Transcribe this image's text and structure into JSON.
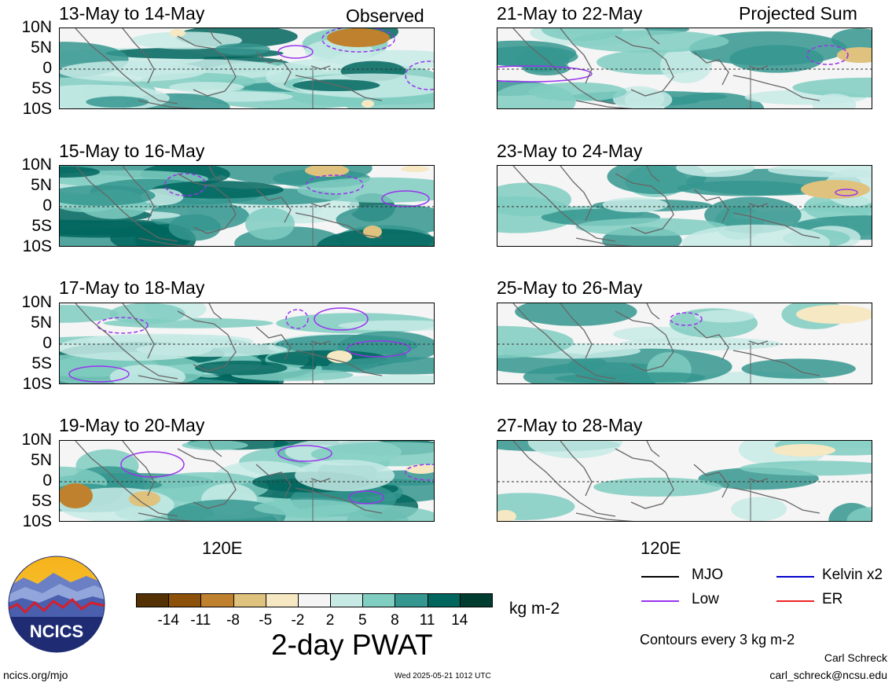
{
  "panels_left": [
    {
      "title": "13-May to 14-May",
      "tag": "Observed"
    },
    {
      "title": "15-May to 16-May",
      "tag": ""
    },
    {
      "title": "17-May to 18-May",
      "tag": ""
    },
    {
      "title": "19-May to 20-May",
      "tag": ""
    }
  ],
  "panels_right": [
    {
      "title": "21-May to 22-May",
      "tag": "Projected Sum"
    },
    {
      "title": "23-May to 24-May",
      "tag": ""
    },
    {
      "title": "25-May to 26-May",
      "tag": ""
    },
    {
      "title": "27-May to 28-May",
      "tag": ""
    }
  ],
  "lat_labels": [
    "10N",
    "5N",
    "0",
    "5S",
    "10S"
  ],
  "lon_label": "120E",
  "colorbar": {
    "ticks": [
      "-14",
      "-11",
      "-8",
      "-5",
      "-2",
      "2",
      "5",
      "8",
      "11",
      "14"
    ],
    "colors": [
      "#543005",
      "#8c510a",
      "#bf812d",
      "#dfc27d",
      "#f6e8c3",
      "#f5f5f5",
      "#c7eae5",
      "#80cdc1",
      "#35978f",
      "#01665e",
      "#003c30"
    ],
    "units": "kg m-2",
    "title": "2-day PWAT"
  },
  "legend": [
    {
      "label": "MJO",
      "color": "#000000"
    },
    {
      "label": "Kelvin x2",
      "color": "#0000cc"
    },
    {
      "label": "Low",
      "color": "#9933ee"
    },
    {
      "label": "ER",
      "color": "#ee2222"
    }
  ],
  "contour_note": "Contours every 3 kg m-2",
  "logo_text": "NCICS",
  "author": "Carl Schreck",
  "email": "carl_schreck@ncsu.edu",
  "url": "ncics.org/mjo",
  "timestamp": "Wed 2025-05-21 1012 UTC"
}
